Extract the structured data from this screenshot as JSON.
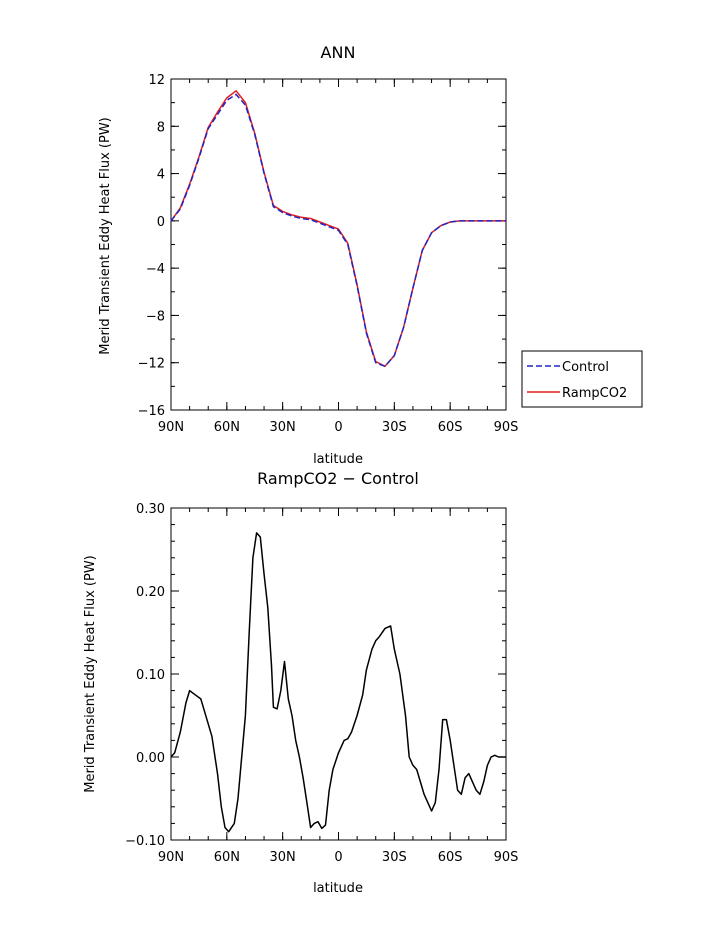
{
  "chart_data": [
    {
      "type": "line",
      "title": "ANN",
      "xlabel": "latitude",
      "ylabel": "Merid Transient Eddy Heat Flux (PW)",
      "xlim": [
        90,
        -90
      ],
      "ylim": [
        -16,
        12
      ],
      "x_ticks": [
        90,
        60,
        30,
        0,
        -30,
        -60,
        -90
      ],
      "x_tick_labels": [
        "90N",
        "60N",
        "30N",
        "0",
        "30S",
        "60S",
        "90S"
      ],
      "y_ticks": [
        -16,
        -12,
        -8,
        -4,
        0,
        4,
        8,
        12
      ],
      "y_tick_labels": [
        "−16",
        "−12",
        "−8",
        "−4",
        "0",
        "4",
        "8",
        "12"
      ],
      "legend_position": "right",
      "x": [
        90,
        85,
        80,
        75,
        70,
        65,
        60,
        55,
        50,
        45,
        40,
        35,
        30,
        25,
        20,
        15,
        10,
        5,
        0,
        -5,
        -10,
        -15,
        -20,
        -25,
        -30,
        -35,
        -40,
        -45,
        -50,
        -55,
        -60,
        -65,
        -70,
        -75,
        -80,
        -85,
        -90
      ],
      "series": [
        {
          "name": "Control",
          "color": "#2323c8",
          "dash": "dashed",
          "values": [
            0.0,
            1.0,
            3.0,
            5.3,
            7.8,
            9.0,
            10.2,
            10.7,
            9.8,
            7.3,
            4.0,
            1.2,
            0.7,
            0.4,
            0.2,
            0.1,
            -0.2,
            -0.5,
            -0.8,
            -2.0,
            -5.5,
            -9.5,
            -12.0,
            -12.3,
            -11.4,
            -9.0,
            -5.7,
            -2.5,
            -1.0,
            -0.4,
            -0.1,
            0.0,
            0.0,
            0.0,
            0.0,
            0.0,
            0.0
          ]
        },
        {
          "name": "RampCO2",
          "color": "#e02020",
          "dash": "solid",
          "values": [
            0.0,
            1.1,
            3.1,
            5.4,
            7.9,
            9.2,
            10.4,
            11.0,
            10.0,
            7.4,
            4.1,
            1.3,
            0.8,
            0.5,
            0.3,
            0.2,
            -0.1,
            -0.4,
            -0.7,
            -1.9,
            -5.4,
            -9.4,
            -11.9,
            -12.3,
            -11.4,
            -9.0,
            -5.7,
            -2.5,
            -1.0,
            -0.4,
            -0.1,
            0.0,
            0.0,
            0.0,
            0.0,
            0.0,
            0.0
          ]
        }
      ]
    },
    {
      "type": "line",
      "title": "RampCO2 − Control",
      "xlabel": "latitude",
      "ylabel": "Merid Transient Eddy Heat Flux (PW)",
      "xlim": [
        90,
        -90
      ],
      "ylim": [
        -0.1,
        0.3
      ],
      "x_ticks": [
        90,
        60,
        30,
        0,
        -30,
        -60,
        -90
      ],
      "x_tick_labels": [
        "90N",
        "60N",
        "30N",
        "0",
        "30S",
        "60S",
        "90S"
      ],
      "y_ticks": [
        -0.1,
        0.0,
        0.1,
        0.2,
        0.3
      ],
      "y_tick_labels": [
        "−0.10",
        "0.00",
        "0.10",
        "0.20",
        "0.30"
      ],
      "x": [
        90,
        88,
        85,
        82,
        80,
        77,
        74,
        72,
        70,
        68,
        65,
        63,
        61,
        59,
        56,
        54,
        52,
        50,
        48,
        46,
        44,
        42,
        40,
        38,
        36,
        35,
        33,
        31,
        29,
        27,
        25,
        23,
        21,
        19,
        17,
        15,
        13,
        11,
        9,
        7,
        5,
        3,
        0,
        -3,
        -5,
        -7,
        -10,
        -13,
        -15,
        -18,
        -20,
        -22,
        -25,
        -28,
        -30,
        -33,
        -36,
        -38,
        -40,
        -42,
        -44,
        -46,
        -48,
        -50,
        -52,
        -54,
        -56,
        -58,
        -60,
        -62,
        -64,
        -66,
        -68,
        -70,
        -72,
        -74,
        -76,
        -78,
        -80,
        -82,
        -84,
        -86,
        -88,
        -90
      ],
      "series": [
        {
          "name": "",
          "color": "#000000",
          "dash": "solid",
          "values": [
            0.0,
            0.005,
            0.03,
            0.065,
            0.08,
            0.075,
            0.07,
            0.055,
            0.04,
            0.025,
            -0.02,
            -0.06,
            -0.085,
            -0.09,
            -0.08,
            -0.05,
            0.0,
            0.05,
            0.15,
            0.24,
            0.27,
            0.265,
            0.22,
            0.18,
            0.11,
            0.06,
            0.058,
            0.08,
            0.115,
            0.07,
            0.05,
            0.02,
            0.0,
            -0.025,
            -0.055,
            -0.085,
            -0.08,
            -0.078,
            -0.086,
            -0.082,
            -0.04,
            -0.015,
            0.005,
            0.02,
            0.022,
            0.03,
            0.05,
            0.075,
            0.105,
            0.13,
            0.14,
            0.145,
            0.155,
            0.158,
            0.13,
            0.1,
            0.05,
            0.0,
            -0.01,
            -0.015,
            -0.03,
            -0.045,
            -0.055,
            -0.065,
            -0.055,
            -0.015,
            0.045,
            0.045,
            0.02,
            -0.01,
            -0.04,
            -0.045,
            -0.025,
            -0.02,
            -0.03,
            -0.04,
            -0.045,
            -0.03,
            -0.01,
            0.0,
            0.002,
            0.0,
            0.0,
            0.0
          ]
        }
      ]
    }
  ]
}
